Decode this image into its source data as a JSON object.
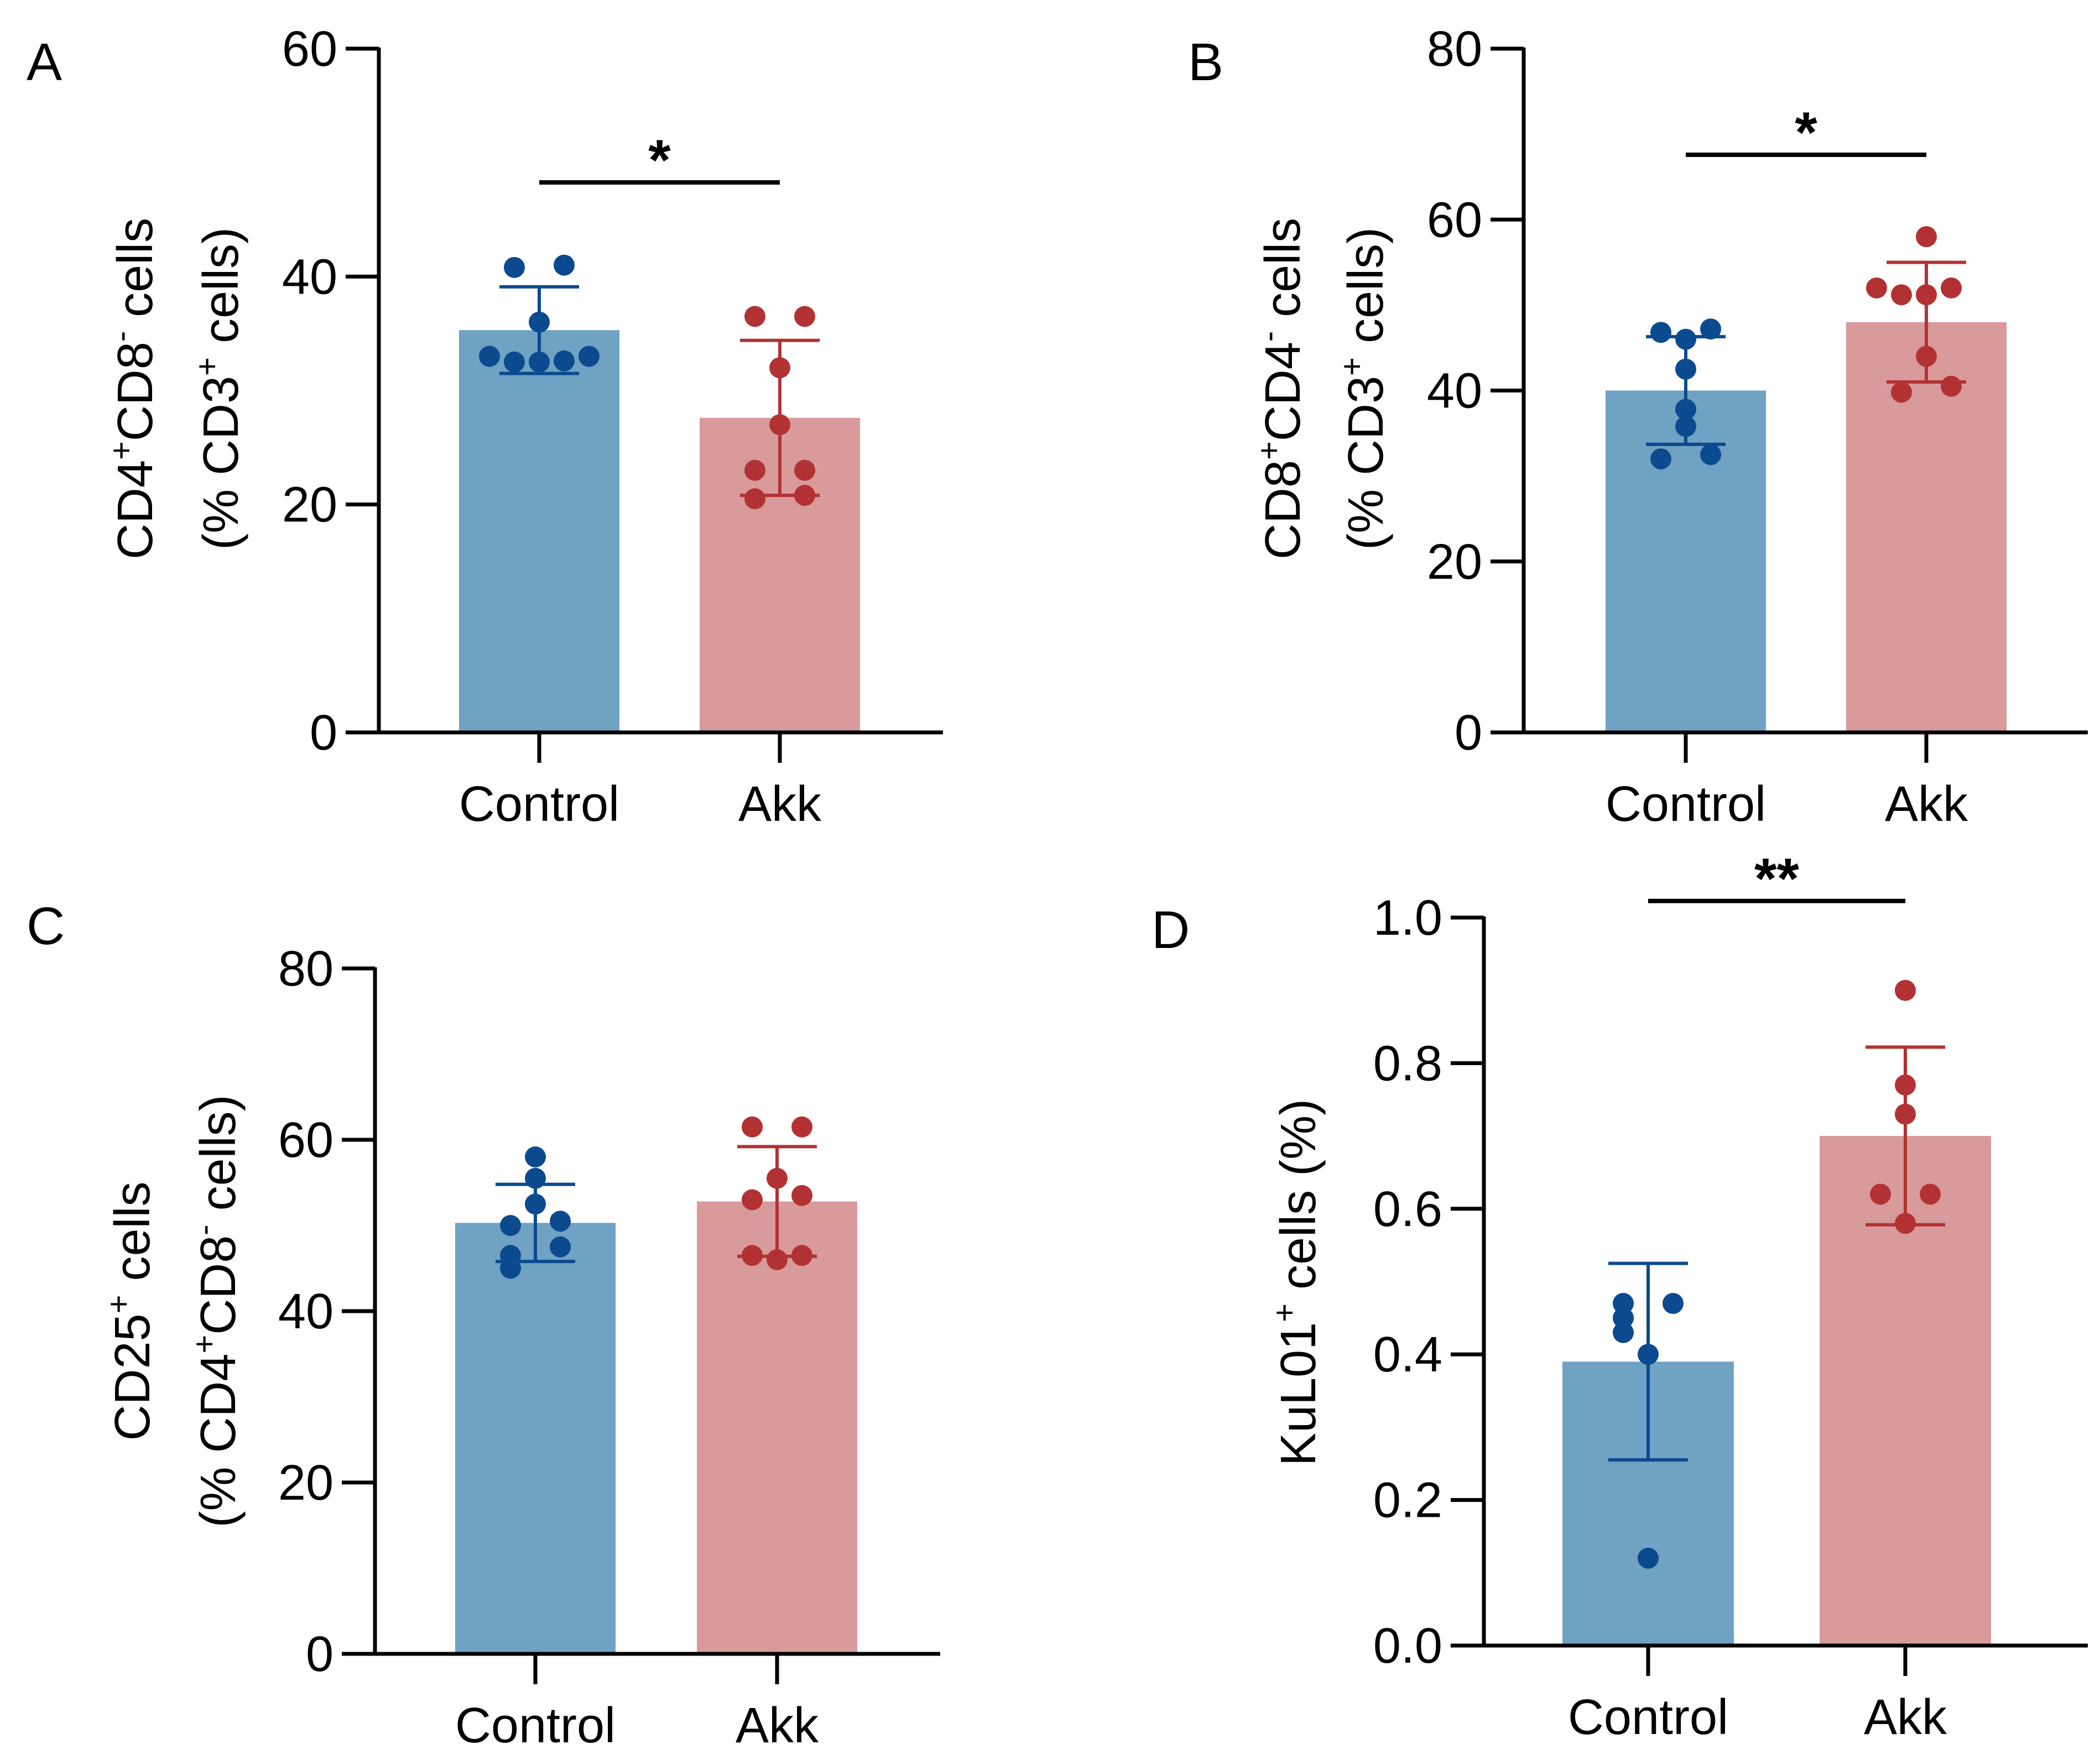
{
  "colors": {
    "control_bar": "#6fa2c3",
    "akk_bar": "#d89a9a",
    "control_point": "#0b4a8f",
    "akk_point": "#b23233",
    "axis": "#000000"
  },
  "chart_data": [
    {
      "panel": "A",
      "type": "bar",
      "categories": [
        "Control",
        "Akk"
      ],
      "ylabel_line1": [
        {
          "t": "CD4"
        },
        {
          "t": "+",
          "sup": true
        },
        {
          "t": "CD8"
        },
        {
          "t": "-",
          "sup": true
        },
        {
          "t": " cells"
        }
      ],
      "ylabel_line2": [
        {
          "t": "(% CD3"
        },
        {
          "t": "+",
          "sup": true
        },
        {
          "t": " cells)"
        }
      ],
      "ylim": [
        0,
        60
      ],
      "yticks": [
        0,
        20,
        40,
        60
      ],
      "tick_labels": [
        "0",
        "20",
        "40",
        "60"
      ],
      "means": [
        35.3,
        27.6
      ],
      "sd": [
        3.8,
        6.8
      ],
      "points": [
        [
          32.5,
          32.5,
          33.0,
          33.0,
          32.6,
          36.0,
          40.8,
          41.0
        ],
        [
          20.5,
          20.8,
          23.0,
          23.0,
          27.0,
          32.0,
          36.5,
          36.5
        ]
      ],
      "significance": "*"
    },
    {
      "panel": "B",
      "type": "bar",
      "categories": [
        "Control",
        "Akk"
      ],
      "ylabel_line1": [
        {
          "t": "CD8"
        },
        {
          "t": "+",
          "sup": true
        },
        {
          "t": "CD4"
        },
        {
          "t": "-",
          "sup": true
        },
        {
          "t": " cells"
        }
      ],
      "ylabel_line2": [
        {
          "t": "(% CD3"
        },
        {
          "t": "+",
          "sup": true
        },
        {
          "t": " cells)"
        }
      ],
      "ylim": [
        0,
        80
      ],
      "yticks": [
        0,
        20,
        40,
        60,
        80
      ],
      "tick_labels": [
        "0",
        "20",
        "40",
        "60",
        "80"
      ],
      "means": [
        40.0,
        48.0
      ],
      "sd": [
        6.3,
        7.0
      ],
      "points": [
        [
          32.0,
          32.5,
          35.8,
          37.8,
          42.5,
          46.0,
          46.8,
          47.2
        ],
        [
          39.8,
          40.5,
          44.0,
          51.2,
          51.2,
          52.0,
          52.0,
          58.0
        ]
      ],
      "significance": "*"
    },
    {
      "panel": "C",
      "type": "bar",
      "categories": [
        "Control",
        "Akk"
      ],
      "ylabel_line1": [
        {
          "t": "CD25"
        },
        {
          "t": "+",
          "sup": true
        },
        {
          "t": " cells"
        }
      ],
      "ylabel_line2": [
        {
          "t": "(% CD4"
        },
        {
          "t": "+",
          "sup": true
        },
        {
          "t": "CD8"
        },
        {
          "t": "-",
          "sup": true
        },
        {
          "t": " cells)"
        }
      ],
      "ylim": [
        0,
        80
      ],
      "yticks": [
        0,
        20,
        40,
        60,
        80
      ],
      "tick_labels": [
        "0",
        "20",
        "40",
        "60",
        "80"
      ],
      "means": [
        50.3,
        52.8
      ],
      "sd": [
        4.5,
        6.4
      ],
      "points": [
        [
          45.0,
          46.5,
          47.5,
          50.0,
          50.5,
          52.5,
          55.5,
          58.0
        ],
        [
          46.0,
          46.5,
          46.5,
          53.0,
          53.5,
          55.5,
          61.5,
          61.5
        ]
      ],
      "significance": ""
    },
    {
      "panel": "D",
      "type": "bar",
      "categories": [
        "Control",
        "Akk"
      ],
      "ylabel_line1": [
        {
          "t": "KuL01"
        },
        {
          "t": "+",
          "sup": true
        },
        {
          "t": " cells (%)"
        }
      ],
      "ylabel_line2": [],
      "ylim": [
        0,
        1.0
      ],
      "yticks": [
        0,
        0.2,
        0.4,
        0.6,
        0.8,
        1.0
      ],
      "tick_labels": [
        "0.0",
        "0.2",
        "0.4",
        "0.6",
        "0.8",
        "1.0"
      ],
      "means": [
        0.39,
        0.7
      ],
      "sd": [
        0.135,
        0.122
      ],
      "points": [
        [
          0.12,
          0.4,
          0.43,
          0.47,
          0.47,
          0.45
        ],
        [
          0.58,
          0.62,
          0.62,
          0.73,
          0.77,
          0.9
        ]
      ],
      "significance": "**"
    }
  ]
}
